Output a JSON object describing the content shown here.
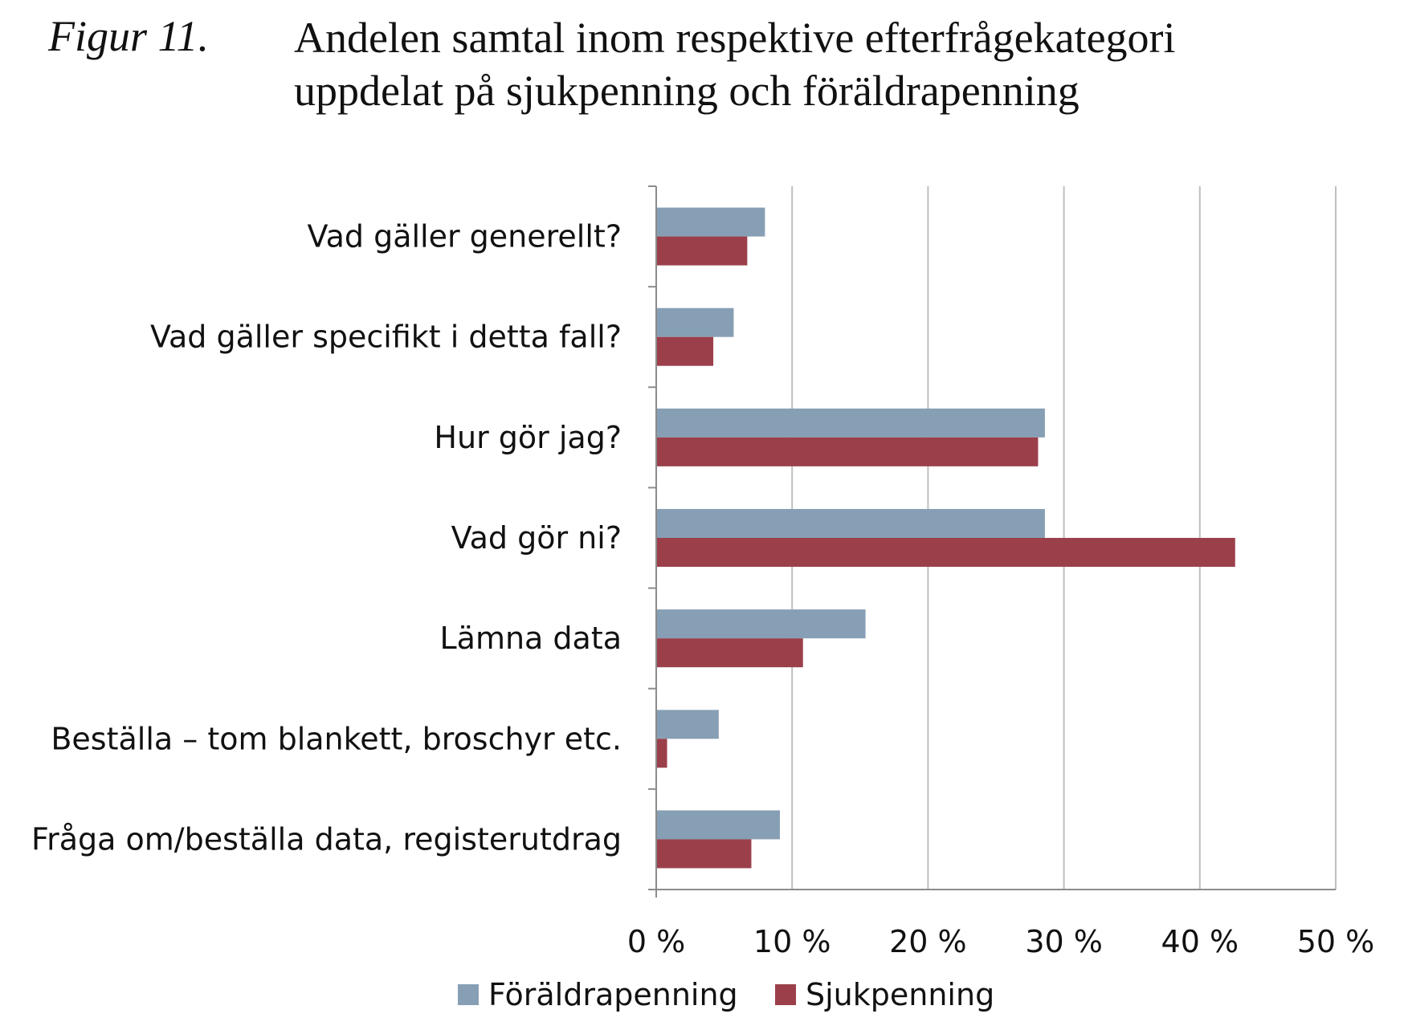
{
  "figure": {
    "label": "Figur 11.",
    "title_line1": "Andelen samtal inom respektive efterfrågekategori",
    "title_line2": "uppdelat på sjukpenning och föräldrapenning"
  },
  "colors": {
    "foraldrapenning": "#879fb4",
    "sjukpenning": "#9b404b",
    "gridline": "#bfbfbf",
    "axis": "#8c8c8c"
  },
  "chart_data": {
    "type": "bar",
    "orientation": "horizontal",
    "categories": [
      "Vad gäller generellt?",
      "Vad gäller specifikt i detta fall?",
      "Hur gör jag?",
      "Vad gör ni?",
      "Lämna data",
      "Beställa – tom blankett, broschyr etc.",
      "Fråga om/beställa data, registerutdrag"
    ],
    "series": [
      {
        "name": "Föräldrapenning",
        "values": [
          8.0,
          5.7,
          28.6,
          28.6,
          15.4,
          4.6,
          9.1
        ]
      },
      {
        "name": "Sjukpenning",
        "values": [
          6.7,
          4.2,
          28.1,
          42.6,
          10.8,
          0.8,
          7.0
        ]
      }
    ],
    "xlim": [
      0,
      50
    ],
    "xticks": [
      0,
      10,
      20,
      30,
      40,
      50
    ],
    "tick_labels": [
      "0 %",
      "10 %",
      "20 %",
      "30 %",
      "40 %",
      "50 %"
    ],
    "grid": "vertical",
    "legend_position": "bottom"
  }
}
